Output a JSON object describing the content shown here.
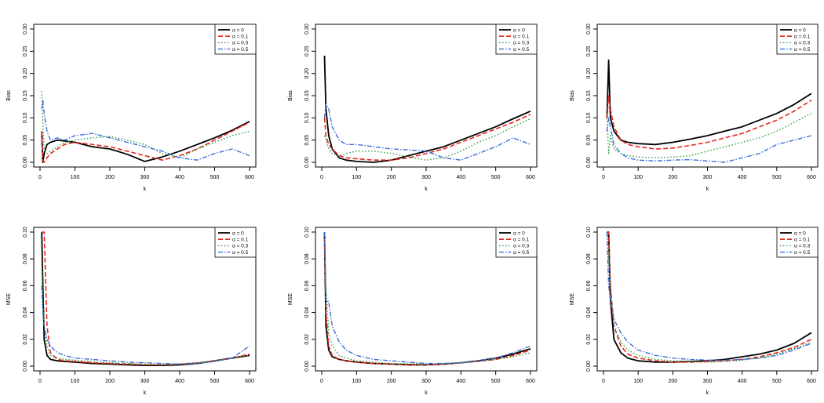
{
  "legend_labels": [
    "α = 0",
    "α = 0.1",
    "α = 0.3",
    "α = 0.5"
  ],
  "series_styles": [
    {
      "color": "#000000",
      "dash": "",
      "width": 1.8
    },
    {
      "color": "#e8251f",
      "dash": "6,3",
      "width": 1.6
    },
    {
      "color": "#2a9d3a",
      "dash": "1.5,2.5",
      "width": 1.4
    },
    {
      "color": "#3c6fd8",
      "dash": "6,2,1.5,2",
      "width": 1.4
    }
  ],
  "chart_data": [
    {
      "type": "line",
      "xlabel": "k",
      "ylabel": "Bias",
      "xlim": [
        0,
        600
      ],
      "ylim": [
        0,
        0.3
      ],
      "xticks": [
        0,
        100,
        200,
        300,
        400,
        500,
        600
      ],
      "yticks": [
        "0.00",
        "0.05",
        "0.10",
        "0.15",
        "0.20",
        "0.25",
        "0.30"
      ],
      "legend": "top-right",
      "x": [
        5,
        8,
        12,
        20,
        30,
        50,
        70,
        100,
        150,
        200,
        250,
        300,
        350,
        400,
        450,
        500,
        550,
        600
      ],
      "series": [
        {
          "name": "α = 0",
          "values": [
            0.07,
            0.0,
            0.02,
            0.04,
            0.045,
            0.05,
            0.048,
            0.045,
            0.035,
            0.03,
            0.018,
            0.002,
            0.012,
            0.025,
            0.04,
            0.055,
            0.072,
            0.092
          ]
        },
        {
          "name": "α = 0.1",
          "values": [
            0.07,
            0.005,
            0.0,
            0.01,
            0.02,
            0.03,
            0.04,
            0.045,
            0.04,
            0.035,
            0.025,
            0.015,
            0.005,
            0.015,
            0.03,
            0.05,
            0.07,
            0.09
          ]
        },
        {
          "name": "α = 0.3",
          "values": [
            0.16,
            0.09,
            0.03,
            0.02,
            0.025,
            0.035,
            0.045,
            0.05,
            0.055,
            0.058,
            0.05,
            0.04,
            0.02,
            0.01,
            0.03,
            0.045,
            0.06,
            0.07
          ]
        },
        {
          "name": "α = 0.5",
          "values": [
            0.12,
            0.14,
            0.11,
            0.07,
            0.05,
            0.055,
            0.05,
            0.06,
            0.065,
            0.055,
            0.045,
            0.035,
            0.025,
            0.01,
            0.005,
            0.02,
            0.03,
            0.015
          ]
        }
      ]
    },
    {
      "type": "line",
      "xlabel": "k",
      "ylabel": "Bias",
      "xlim": [
        0,
        600
      ],
      "ylim": [
        0,
        0.3
      ],
      "xticks": [
        0,
        100,
        200,
        300,
        400,
        500,
        600
      ],
      "yticks": [
        "0.00",
        "0.05",
        "0.10",
        "0.15",
        "0.20",
        "0.25",
        "0.30"
      ],
      "legend": "top-right",
      "x": [
        8,
        12,
        20,
        30,
        50,
        70,
        100,
        150,
        200,
        250,
        300,
        350,
        400,
        450,
        500,
        550,
        600
      ],
      "series": [
        {
          "name": "α = 0",
          "values": [
            0.24,
            0.12,
            0.06,
            0.03,
            0.01,
            0.005,
            0.002,
            0.0,
            0.005,
            0.015,
            0.025,
            0.035,
            0.05,
            0.065,
            0.08,
            0.098,
            0.115
          ]
        },
        {
          "name": "α = 0.1",
          "values": [
            0.1,
            0.06,
            0.04,
            0.03,
            0.015,
            0.01,
            0.008,
            0.005,
            0.005,
            0.01,
            0.02,
            0.03,
            0.045,
            0.06,
            0.075,
            0.09,
            0.108
          ]
        },
        {
          "name": "α = 0.3",
          "values": [
            0.06,
            0.05,
            0.03,
            0.02,
            0.015,
            0.02,
            0.025,
            0.025,
            0.02,
            0.012,
            0.005,
            0.01,
            0.025,
            0.045,
            0.06,
            0.08,
            0.098
          ]
        },
        {
          "name": "α = 0.5",
          "values": [
            0.1,
            0.13,
            0.12,
            0.08,
            0.05,
            0.04,
            0.04,
            0.035,
            0.03,
            0.028,
            0.025,
            0.01,
            0.005,
            0.02,
            0.035,
            0.055,
            0.04
          ]
        }
      ]
    },
    {
      "type": "line",
      "xlabel": "k",
      "ylabel": "Bias",
      "xlim": [
        0,
        600
      ],
      "ylim": [
        0,
        0.3
      ],
      "xticks": [
        0,
        100,
        200,
        300,
        400,
        500,
        600
      ],
      "yticks": [
        "0.00",
        "0.05",
        "0.10",
        "0.15",
        "0.20",
        "0.25",
        "0.30"
      ],
      "legend": "top-right",
      "x": [
        10,
        15,
        20,
        30,
        50,
        70,
        100,
        150,
        200,
        250,
        300,
        350,
        400,
        450,
        500,
        550,
        600
      ],
      "series": [
        {
          "name": "α = 0",
          "values": [
            0.1,
            0.23,
            0.1,
            0.07,
            0.05,
            0.045,
            0.042,
            0.04,
            0.045,
            0.052,
            0.06,
            0.07,
            0.08,
            0.095,
            0.11,
            0.13,
            0.155
          ]
        },
        {
          "name": "α = 0.1",
          "values": [
            0.1,
            0.15,
            0.12,
            0.08,
            0.05,
            0.04,
            0.035,
            0.03,
            0.032,
            0.038,
            0.045,
            0.055,
            0.065,
            0.08,
            0.095,
            0.115,
            0.14
          ]
        },
        {
          "name": "α = 0.3",
          "values": [
            0.1,
            0.02,
            0.06,
            0.03,
            0.02,
            0.015,
            0.012,
            0.01,
            0.012,
            0.015,
            0.025,
            0.035,
            0.045,
            0.055,
            0.07,
            0.09,
            0.11
          ]
        },
        {
          "name": "α = 0.5",
          "values": [
            0.07,
            0.1,
            0.08,
            0.04,
            0.02,
            0.01,
            0.005,
            0.003,
            0.005,
            0.006,
            0.003,
            0.0,
            0.01,
            0.02,
            0.04,
            0.05,
            0.06
          ]
        }
      ]
    },
    {
      "type": "line",
      "xlabel": "k",
      "ylabel": "MSE",
      "xlim": [
        0,
        600
      ],
      "ylim": [
        0,
        0.1
      ],
      "xticks": [
        0,
        100,
        200,
        300,
        400,
        500,
        600
      ],
      "yticks": [
        "0.00",
        "0.02",
        "0.04",
        "0.06",
        "0.08",
        "0.10"
      ],
      "legend": "top-right",
      "x": [
        5,
        8,
        12,
        20,
        30,
        50,
        70,
        100,
        150,
        200,
        250,
        300,
        350,
        400,
        450,
        500,
        550,
        600
      ],
      "series": [
        {
          "name": "α = 0",
          "values": [
            0.1,
            0.06,
            0.02,
            0.008,
            0.005,
            0.004,
            0.0035,
            0.003,
            0.002,
            0.0015,
            0.001,
            0.0005,
            0.0005,
            0.001,
            0.002,
            0.004,
            0.006,
            0.008
          ]
        },
        {
          "name": "α = 0.1",
          "values": [
            0.1,
            0.1,
            0.1,
            0.03,
            0.01,
            0.005,
            0.004,
            0.0035,
            0.0025,
            0.002,
            0.0015,
            0.001,
            0.001,
            0.0015,
            0.0025,
            0.004,
            0.006,
            0.009
          ]
        },
        {
          "name": "α = 0.3",
          "values": [
            0.08,
            0.05,
            0.03,
            0.015,
            0.008,
            0.006,
            0.005,
            0.0045,
            0.0035,
            0.0025,
            0.002,
            0.0015,
            0.001,
            0.0015,
            0.0025,
            0.004,
            0.006,
            0.008
          ]
        },
        {
          "name": "α = 0.5",
          "values": [
            0.06,
            0.04,
            0.03,
            0.02,
            0.015,
            0.01,
            0.008,
            0.006,
            0.005,
            0.004,
            0.003,
            0.0025,
            0.002,
            0.0015,
            0.002,
            0.0035,
            0.006,
            0.015
          ]
        }
      ]
    },
    {
      "type": "line",
      "xlabel": "k",
      "ylabel": "MSE",
      "xlim": [
        0,
        600
      ],
      "ylim": [
        0,
        0.1
      ],
      "xticks": [
        0,
        100,
        200,
        300,
        400,
        500,
        600
      ],
      "yticks": [
        "0.00",
        "0.02",
        "0.04",
        "0.06",
        "0.08",
        "0.10"
      ],
      "legend": "top-right",
      "x": [
        8,
        12,
        20,
        30,
        50,
        70,
        100,
        150,
        200,
        250,
        300,
        350,
        400,
        450,
        500,
        550,
        600
      ],
      "series": [
        {
          "name": "α = 0",
          "values": [
            0.1,
            0.03,
            0.012,
            0.007,
            0.005,
            0.004,
            0.003,
            0.002,
            0.0015,
            0.001,
            0.001,
            0.0015,
            0.0025,
            0.004,
            0.006,
            0.009,
            0.013
          ]
        },
        {
          "name": "α = 0.1",
          "values": [
            0.1,
            0.04,
            0.015,
            0.008,
            0.005,
            0.004,
            0.003,
            0.002,
            0.0015,
            0.0012,
            0.001,
            0.0015,
            0.0025,
            0.0035,
            0.005,
            0.008,
            0.012
          ]
        },
        {
          "name": "α = 0.3",
          "values": [
            0.1,
            0.06,
            0.025,
            0.015,
            0.008,
            0.006,
            0.004,
            0.003,
            0.002,
            0.0018,
            0.0015,
            0.002,
            0.0025,
            0.0035,
            0.005,
            0.007,
            0.01
          ]
        },
        {
          "name": "α = 0.5",
          "values": [
            0.1,
            0.05,
            0.048,
            0.03,
            0.018,
            0.012,
            0.008,
            0.005,
            0.004,
            0.003,
            0.002,
            0.002,
            0.0025,
            0.004,
            0.006,
            0.01,
            0.015
          ]
        }
      ]
    },
    {
      "type": "line",
      "xlabel": "k",
      "ylabel": "MSE",
      "xlim": [
        0,
        600
      ],
      "ylim": [
        0,
        0.1
      ],
      "xticks": [
        0,
        100,
        200,
        300,
        400,
        500,
        600
      ],
      "yticks": [
        "0.00",
        "0.02",
        "0.04",
        "0.06",
        "0.08",
        "0.10"
      ],
      "legend": "top-right",
      "x": [
        10,
        15,
        20,
        30,
        50,
        70,
        100,
        150,
        200,
        250,
        300,
        350,
        400,
        450,
        500,
        550,
        600
      ],
      "series": [
        {
          "name": "α = 0",
          "values": [
            0.1,
            0.1,
            0.05,
            0.02,
            0.01,
            0.006,
            0.004,
            0.003,
            0.003,
            0.0035,
            0.004,
            0.005,
            0.007,
            0.009,
            0.012,
            0.017,
            0.025
          ]
        },
        {
          "name": "α = 0.1",
          "values": [
            0.1,
            0.1,
            0.06,
            0.03,
            0.015,
            0.009,
            0.006,
            0.004,
            0.003,
            0.003,
            0.0035,
            0.004,
            0.005,
            0.007,
            0.01,
            0.014,
            0.02
          ]
        },
        {
          "name": "α = 0.3",
          "values": [
            0.1,
            0.08,
            0.06,
            0.03,
            0.018,
            0.012,
            0.008,
            0.005,
            0.004,
            0.0035,
            0.003,
            0.0035,
            0.0045,
            0.006,
            0.009,
            0.013,
            0.018
          ]
        },
        {
          "name": "α = 0.5",
          "values": [
            0.1,
            0.06,
            0.05,
            0.035,
            0.025,
            0.018,
            0.012,
            0.008,
            0.006,
            0.005,
            0.0045,
            0.0045,
            0.005,
            0.006,
            0.008,
            0.012,
            0.017
          ]
        }
      ]
    }
  ]
}
